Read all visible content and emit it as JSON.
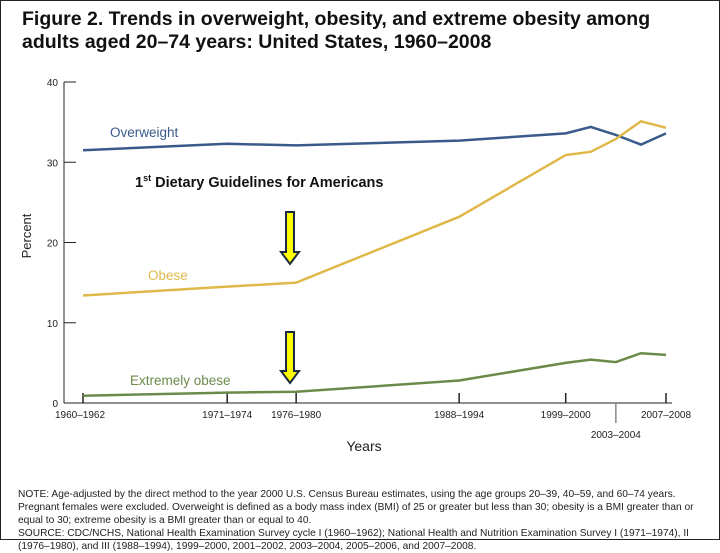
{
  "title": "Figure 2. Trends in overweight, obesity, and extreme obesity among adults aged 20–74 years: United States, 1960–2008",
  "annotation": {
    "prefix": "1",
    "sup": "st",
    "text": " Dietary Guidelines for Americans",
    "arrow_color": "#ffff00"
  },
  "note": "NOTE: Age-adjusted by the direct method to the year 2000 U.S. Census Bureau estimates, using the age groups 20–39, 40–59, and 60–74 years. Pregnant females were excluded. Overweight is defined as a body mass index (BMI) of 25 or greater but less than 30; obesity is a BMI greater than or equal to 30; extreme obesity is a BMI greater than or equal to 40.",
  "source": "SOURCE: CDC/NCHS, National Health Examination Survey cycle I (1960–1962); National Health and Nutrition Examination Survey I (1971–1974), II (1976–1980), and III (1988–1994), 1999–2000, 2001–2002, 2003–2004, 2005–2006, and 2007–2008.",
  "chart_data": {
    "type": "line",
    "xlabel": "Years",
    "ylabel": "Percent",
    "ylim": [
      0,
      40
    ],
    "yticks": [
      0,
      10,
      20,
      30,
      40
    ],
    "x": [
      1961,
      1972.5,
      1978,
      1991,
      1999.5,
      2001.5,
      2003.5,
      2005.5,
      2007.5
    ],
    "xticks": [
      {
        "x": 1961,
        "label": "1960–1962"
      },
      {
        "x": 1972.5,
        "label": "1971–1974"
      },
      {
        "x": 1978,
        "label": "1976–1980"
      },
      {
        "x": 1991,
        "label": "1988–1994"
      },
      {
        "x": 1999.5,
        "label": "1999–2000"
      },
      {
        "x": 2003.5,
        "label": "2003–2004"
      },
      {
        "x": 2007.5,
        "label": "2007–2008"
      }
    ],
    "grid": false,
    "series": [
      {
        "name": "Overweight",
        "color": "#3a5a8c",
        "values": [
          31.5,
          32.3,
          32.1,
          32.7,
          33.6,
          34.4,
          33.4,
          32.2,
          33.6
        ]
      },
      {
        "name": "Obese",
        "color": "#e0b84a",
        "values": [
          13.4,
          14.5,
          15.0,
          23.2,
          30.9,
          31.3,
          32.9,
          35.1,
          34.3
        ]
      },
      {
        "name": "Extremely obese",
        "color": "#6b8a4a",
        "values": [
          0.9,
          1.3,
          1.4,
          2.8,
          5.0,
          5.4,
          5.1,
          6.2,
          6.0
        ]
      }
    ]
  }
}
